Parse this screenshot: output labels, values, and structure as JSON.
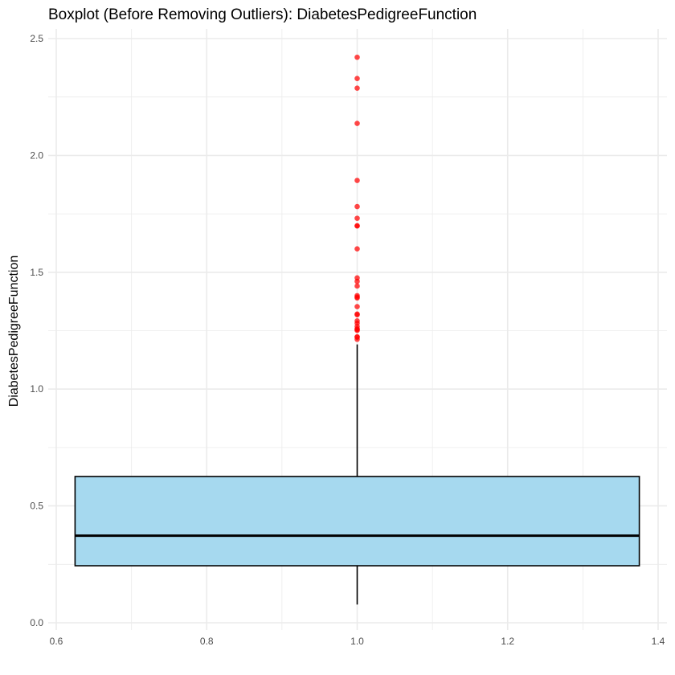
{
  "chart_data": {
    "type": "boxplot",
    "title": "Boxplot (Before Removing Outliers): DiabetesPedigreeFunction",
    "xlabel": "",
    "ylabel": "DiabetesPedigreeFunction",
    "xlim": [
      0.6,
      1.4
    ],
    "ylim": [
      0,
      2.5
    ],
    "x_ticks": [
      0.6,
      0.8,
      1.0,
      1.2,
      1.4
    ],
    "x_tick_labels": [
      "0.6",
      "0.8",
      "1.0",
      "1.2",
      "1.4"
    ],
    "y_ticks": [
      0,
      0.5,
      1.0,
      1.5,
      2.0,
      2.5
    ],
    "y_tick_labels": [
      "0.0",
      "0.5",
      "1.0",
      "1.5",
      "2.0",
      "2.5"
    ],
    "grid": true,
    "box": {
      "x": 1.0,
      "x_min": 0.625,
      "x_max": 1.375,
      "whisker_low": 0.078,
      "q1": 0.244,
      "median": 0.3725,
      "q3": 0.626,
      "whisker_high": 1.191
    },
    "outliers": [
      2.42,
      2.329,
      2.288,
      2.137,
      1.893,
      1.781,
      1.731,
      1.699,
      1.698,
      1.6,
      1.476,
      1.461,
      1.441,
      1.4,
      1.394,
      1.39,
      1.353,
      1.321,
      1.318,
      1.292,
      1.282,
      1.268,
      1.258,
      1.255,
      1.251,
      1.224,
      1.222,
      1.213
    ],
    "colors": {
      "box_fill": "#a6d9ef",
      "box_stroke": "#000000",
      "outlier": "#ff0000",
      "grid": "#ebebeb"
    }
  }
}
